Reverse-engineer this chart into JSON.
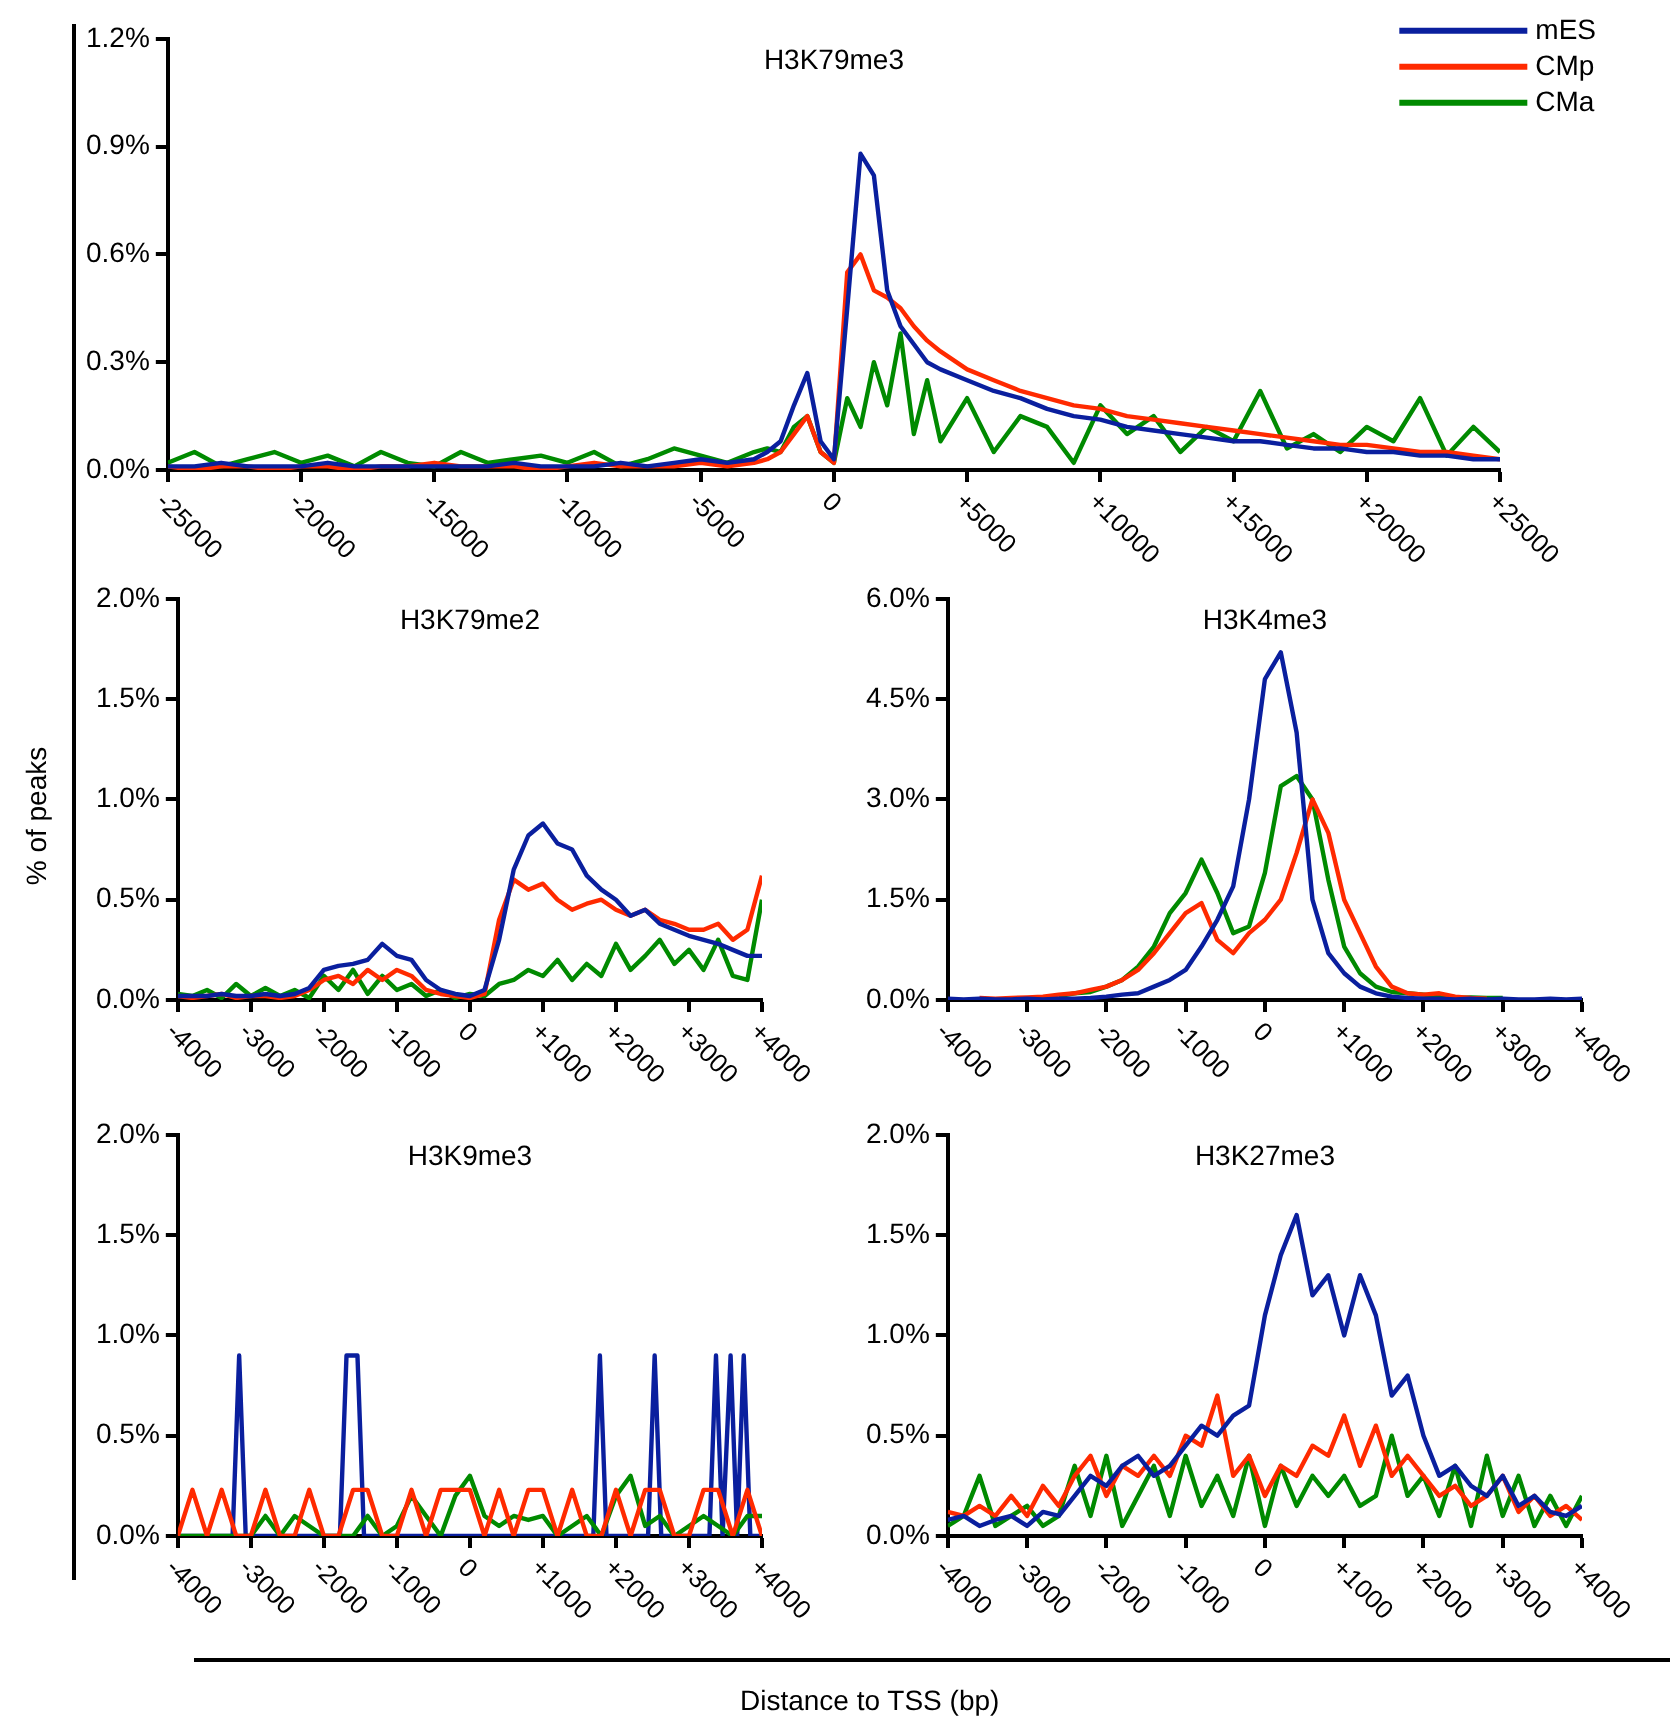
{
  "chart_data": [
    {
      "type": "line",
      "title": "H3K79me3",
      "legend": "top right",
      "x": [
        -25000,
        -24000,
        -23000,
        -22000,
        -21000,
        -20000,
        -19000,
        -18000,
        -17000,
        -16000,
        -15000,
        -14000,
        -13000,
        -12000,
        -11000,
        -10000,
        -9000,
        -8000,
        -7000,
        -6000,
        -5000,
        -4000,
        -3000,
        -2500,
        -2000,
        -1500,
        -1000,
        -500,
        0,
        500,
        1000,
        1500,
        2000,
        2500,
        3000,
        3500,
        4000,
        5000,
        6000,
        7000,
        8000,
        9000,
        10000,
        11000,
        12000,
        13000,
        14000,
        15000,
        16000,
        17000,
        18000,
        19000,
        20000,
        21000,
        22000,
        23000,
        24000,
        25000
      ],
      "xlim": [
        -25000,
        25000
      ],
      "xticks": [
        -25000,
        -20000,
        -15000,
        -10000,
        -5000,
        0,
        {
          "value": 5000,
          "label": "+5000"
        },
        {
          "value": 10000,
          "label": "+10000"
        },
        {
          "value": 15000,
          "label": "+15000"
        },
        {
          "value": 20000,
          "label": "+20000"
        },
        {
          "value": 25000,
          "label": "+25000"
        }
      ],
      "ylim": [
        0,
        1.2
      ],
      "yticks": [
        {
          "value": 0,
          "label": "0.0%"
        },
        {
          "value": 0.3,
          "label": "0.3%"
        },
        {
          "value": 0.6,
          "label": "0.6%"
        },
        {
          "value": 0.9,
          "label": "0.9%"
        },
        {
          "value": 1.2,
          "label": "1.2%"
        }
      ],
      "series": [
        {
          "name": "mES",
          "color": "#0a1f9e",
          "values": [
            0.01,
            0.01,
            0.02,
            0.01,
            0.01,
            0.01,
            0.02,
            0.01,
            0.01,
            0.01,
            0.01,
            0.01,
            0.01,
            0.02,
            0.01,
            0.01,
            0.01,
            0.02,
            0.01,
            0.02,
            0.03,
            0.02,
            0.03,
            0.05,
            0.08,
            0.18,
            0.27,
            0.08,
            0.03,
            0.45,
            0.88,
            0.82,
            0.5,
            0.4,
            0.35,
            0.3,
            0.28,
            0.25,
            0.22,
            0.2,
            0.17,
            0.15,
            0.14,
            0.12,
            0.11,
            0.1,
            0.09,
            0.08,
            0.08,
            0.07,
            0.06,
            0.06,
            0.05,
            0.05,
            0.04,
            0.04,
            0.03,
            0.03
          ]
        },
        {
          "name": "CMp",
          "color": "#ff2a00",
          "values": [
            0.01,
            0,
            0.01,
            0.01,
            0,
            0.01,
            0.01,
            0,
            0.01,
            0.01,
            0.02,
            0.01,
            0.01,
            0.01,
            0,
            0.01,
            0.02,
            0.01,
            0.01,
            0.01,
            0.02,
            0.01,
            0.02,
            0.03,
            0.05,
            0.1,
            0.15,
            0.05,
            0.02,
            0.55,
            0.6,
            0.5,
            0.48,
            0.45,
            0.4,
            0.36,
            0.33,
            0.28,
            0.25,
            0.22,
            0.2,
            0.18,
            0.17,
            0.15,
            0.14,
            0.13,
            0.12,
            0.11,
            0.1,
            0.09,
            0.08,
            0.07,
            0.07,
            0.06,
            0.05,
            0.05,
            0.04,
            0.03
          ]
        },
        {
          "name": "CMa",
          "color": "#008a00",
          "values": [
            0.02,
            0.05,
            0.01,
            0.03,
            0.05,
            0.02,
            0.04,
            0.01,
            0.05,
            0.02,
            0.01,
            0.05,
            0.02,
            0.03,
            0.04,
            0.02,
            0.05,
            0.01,
            0.03,
            0.06,
            0.04,
            0.02,
            0.05,
            0.06,
            0.05,
            0.12,
            0.15,
            0.05,
            0.02,
            0.2,
            0.12,
            0.3,
            0.18,
            0.38,
            0.1,
            0.25,
            0.08,
            0.2,
            0.05,
            0.15,
            0.12,
            0.02,
            0.18,
            0.1,
            0.15,
            0.05,
            0.12,
            0.08,
            0.22,
            0.06,
            0.1,
            0.05,
            0.12,
            0.08,
            0.2,
            0.04,
            0.12,
            0.05
          ]
        }
      ]
    },
    {
      "type": "line",
      "title": "H3K79me2",
      "ylabel": "% of peaks",
      "x": [
        -4000,
        -3800,
        -3600,
        -3400,
        -3200,
        -3000,
        -2800,
        -2600,
        -2400,
        -2200,
        -2000,
        -1800,
        -1600,
        -1400,
        -1200,
        -1000,
        -800,
        -600,
        -400,
        -200,
        0,
        200,
        400,
        600,
        800,
        1000,
        1200,
        1400,
        1600,
        1800,
        2000,
        2200,
        2400,
        2600,
        2800,
        3000,
        3200,
        3400,
        3600,
        3800,
        4000
      ],
      "xlim": [
        -4000,
        4000
      ],
      "xticks": [
        -4000,
        -3000,
        -2000,
        -1000,
        0,
        {
          "value": 1000,
          "label": "+1000"
        },
        {
          "value": 2000,
          "label": "+2000"
        },
        {
          "value": 3000,
          "label": "+3000"
        },
        {
          "value": 4000,
          "label": "+4000"
        }
      ],
      "ylim": [
        0,
        2
      ],
      "yticks": [
        {
          "value": 0,
          "label": "0.0%"
        },
        {
          "value": 0.5,
          "label": "0.5%"
        },
        {
          "value": 1,
          "label": "1.0%"
        },
        {
          "value": 1.5,
          "label": "1.5%"
        },
        {
          "value": 2,
          "label": "2.0%"
        }
      ],
      "series": [
        {
          "color": "#0a1f9e",
          "values": [
            0.02,
            0.02,
            0.02,
            0.03,
            0.02,
            0.02,
            0.03,
            0.02,
            0.03,
            0.06,
            0.15,
            0.17,
            0.18,
            0.2,
            0.28,
            0.22,
            0.2,
            0.1,
            0.05,
            0.03,
            0.02,
            0.05,
            0.3,
            0.65,
            0.82,
            0.88,
            0.78,
            0.75,
            0.62,
            0.55,
            0.5,
            0.42,
            0.45,
            0.38,
            0.35,
            0.32,
            0.3,
            0.28,
            0.25,
            0.22,
            0.22
          ]
        },
        {
          "color": "#ff2a00",
          "values": [
            0.02,
            0.01,
            0.02,
            0.03,
            0.01,
            0.02,
            0.02,
            0.01,
            0.02,
            0.05,
            0.1,
            0.12,
            0.08,
            0.15,
            0.1,
            0.15,
            0.12,
            0.05,
            0.03,
            0.02,
            0.01,
            0.03,
            0.4,
            0.6,
            0.55,
            0.58,
            0.5,
            0.45,
            0.48,
            0.5,
            0.45,
            0.42,
            0.45,
            0.4,
            0.38,
            0.35,
            0.35,
            0.38,
            0.3,
            0.35,
            0.62
          ]
        },
        {
          "color": "#008a00",
          "values": [
            0.03,
            0.02,
            0.05,
            0.01,
            0.08,
            0.02,
            0.06,
            0.02,
            0.05,
            0.01,
            0.12,
            0.05,
            0.15,
            0.03,
            0.12,
            0.05,
            0.08,
            0.02,
            0.05,
            0.01,
            0.03,
            0.02,
            0.08,
            0.1,
            0.15,
            0.12,
            0.2,
            0.1,
            0.18,
            0.12,
            0.28,
            0.15,
            0.22,
            0.3,
            0.18,
            0.25,
            0.15,
            0.3,
            0.12,
            0.1,
            0.5
          ]
        }
      ]
    },
    {
      "type": "line",
      "title": "H3K4me3",
      "x": [
        -4000,
        -3800,
        -3600,
        -3400,
        -3200,
        -3000,
        -2800,
        -2600,
        -2400,
        -2200,
        -2000,
        -1800,
        -1600,
        -1400,
        -1200,
        -1000,
        -800,
        -600,
        -400,
        -200,
        0,
        200,
        400,
        600,
        800,
        1000,
        1200,
        1400,
        1600,
        1800,
        2000,
        2200,
        2400,
        2600,
        2800,
        3000,
        3200,
        3400,
        3600,
        3800,
        4000
      ],
      "xlim": [
        -4000,
        4000
      ],
      "xticks": [
        -4000,
        -3000,
        -2000,
        -1000,
        0,
        {
          "value": 1000,
          "label": "+1000"
        },
        {
          "value": 2000,
          "label": "+2000"
        },
        {
          "value": 3000,
          "label": "+3000"
        },
        {
          "value": 4000,
          "label": "+4000"
        }
      ],
      "ylim": [
        0,
        6
      ],
      "yticks": [
        {
          "value": 0,
          "label": "0.0%"
        },
        {
          "value": 1.5,
          "label": "1.5%"
        },
        {
          "value": 3,
          "label": "3.0%"
        },
        {
          "value": 4.5,
          "label": "4.5%"
        },
        {
          "value": 6,
          "label": "6.0%"
        }
      ],
      "series": [
        {
          "color": "#0a1f9e",
          "values": [
            0.02,
            0.01,
            0.02,
            0.01,
            0.01,
            0.02,
            0.01,
            0.02,
            0.02,
            0.03,
            0.05,
            0.08,
            0.1,
            0.2,
            0.3,
            0.45,
            0.8,
            1.2,
            1.7,
            3.0,
            4.8,
            5.2,
            4.0,
            1.5,
            0.7,
            0.4,
            0.2,
            0.1,
            0.05,
            0.03,
            0.02,
            0.02,
            0.01,
            0.02,
            0.01,
            0.02,
            0.01,
            0.01,
            0.02,
            0.01,
            0.02
          ]
        },
        {
          "color": "#ff2a00",
          "values": [
            null,
            null,
            0.03,
            0.02,
            0.03,
            0.04,
            0.05,
            0.08,
            0.1,
            0.15,
            0.2,
            0.3,
            0.45,
            0.7,
            1.0,
            1.3,
            1.45,
            0.9,
            0.7,
            1.0,
            1.2,
            1.5,
            2.2,
            3.0,
            2.5,
            1.5,
            1.0,
            0.5,
            0.2,
            0.1,
            0.08,
            0.1,
            0.05,
            0.03,
            0.02,
            null,
            null,
            null,
            null,
            null,
            null
          ]
        },
        {
          "color": "#008a00",
          "values": [
            null,
            null,
            null,
            null,
            null,
            null,
            null,
            0.06,
            0.1,
            0.12,
            0.2,
            0.3,
            0.5,
            0.8,
            1.3,
            1.6,
            2.1,
            1.6,
            1.0,
            1.1,
            1.9,
            3.2,
            3.35,
            3.0,
            1.8,
            0.8,
            0.4,
            0.2,
            0.12,
            0.1,
            0.08,
            0.05,
            0.03,
            0.04,
            0.03,
            0.03,
            null,
            null,
            null,
            null,
            null
          ]
        }
      ]
    },
    {
      "type": "line",
      "title": "H3K9me3",
      "x": [
        -4000,
        -3800,
        -3600,
        -3400,
        -3200,
        -3000,
        -2800,
        -2600,
        -2400,
        -2200,
        -2000,
        -1800,
        -1600,
        -1400,
        -1200,
        -1000,
        -800,
        -600,
        -400,
        -200,
        0,
        200,
        400,
        600,
        800,
        1000,
        1200,
        1400,
        1600,
        1800,
        2000,
        2200,
        2400,
        2600,
        2800,
        3000,
        3200,
        3400,
        3600,
        3800,
        4000
      ],
      "xlim": [
        -4000,
        4000
      ],
      "xticks": [
        -4000,
        -3000,
        -2000,
        -1000,
        0,
        {
          "value": 1000,
          "label": "+1000"
        },
        {
          "value": 2000,
          "label": "+2000"
        },
        {
          "value": 3000,
          "label": "+3000"
        },
        {
          "value": 4000,
          "label": "+4000"
        }
      ],
      "ylim": [
        0,
        2
      ],
      "yticks": [
        {
          "value": 0,
          "label": "0.0%"
        },
        {
          "value": 0.5,
          "label": "0.5%"
        },
        {
          "value": 1,
          "label": "1.0%"
        },
        {
          "value": 1.5,
          "label": "1.5%"
        },
        {
          "value": 2,
          "label": "2.0%"
        }
      ],
      "series": [
        {
          "color": "#ff2a00",
          "values": [
            0,
            0.23,
            0,
            0.23,
            0,
            0,
            0.23,
            0,
            0,
            0.23,
            0,
            0,
            0.23,
            0.23,
            0,
            0,
            0.23,
            0,
            0.23,
            0.23,
            0.23,
            0,
            0.23,
            0,
            0.23,
            0.23,
            0,
            0.23,
            0,
            0,
            0.23,
            0,
            0.23,
            0.23,
            0,
            0,
            0.23,
            0.23,
            0,
            0.23,
            0
          ]
        },
        {
          "color": "#008a00",
          "values": [
            0,
            0,
            0,
            0,
            0,
            0,
            0.1,
            0,
            0.1,
            0.05,
            0,
            0,
            0,
            0.1,
            0,
            0.05,
            0.2,
            0.1,
            0,
            0.2,
            0.3,
            0.1,
            0.05,
            0.1,
            0.08,
            0.1,
            0,
            0.05,
            0.1,
            0,
            0.2,
            0.3,
            0.05,
            0.1,
            0,
            0.05,
            0.1,
            0.05,
            0,
            0.1,
            0.1
          ]
        },
        {
          "color": "#0a1f9e",
          "x": [
            -4000,
            -3250,
            -3160,
            -3070,
            -1780,
            -1690,
            -1540,
            -1450,
            1690,
            1780,
            1870,
            2440,
            2530,
            2620,
            3280,
            3370,
            3460,
            3570,
            3660,
            3750,
            3840,
            4000
          ],
          "values": [
            0,
            0,
            0.9,
            0,
            0,
            0.9,
            0.9,
            0,
            0,
            0.9,
            0,
            0,
            0.9,
            0,
            0,
            0.9,
            0,
            0.9,
            0,
            0.9,
            0,
            0
          ]
        }
      ]
    },
    {
      "type": "line",
      "title": "H3K27me3",
      "xlabel": "Distance to TSS (bp)",
      "x": [
        -4000,
        -3800,
        -3600,
        -3400,
        -3200,
        -3000,
        -2800,
        -2600,
        -2400,
        -2200,
        -2000,
        -1800,
        -1600,
        -1400,
        -1200,
        -1000,
        -800,
        -600,
        -400,
        -200,
        0,
        200,
        400,
        600,
        800,
        1000,
        1200,
        1400,
        1600,
        1800,
        2000,
        2200,
        2400,
        2600,
        2800,
        3000,
        3200,
        3400,
        3600,
        3800,
        4000
      ],
      "xlim": [
        -4000,
        4000
      ],
      "xticks": [
        -4000,
        -3000,
        -2000,
        -1000,
        0,
        {
          "value": 1000,
          "label": "+1000"
        },
        {
          "value": 2000,
          "label": "+2000"
        },
        {
          "value": 3000,
          "label": "+3000"
        },
        {
          "value": 4000,
          "label": "+4000"
        }
      ],
      "ylim": [
        0,
        2
      ],
      "yticks": [
        {
          "value": 0,
          "label": "0.0%"
        },
        {
          "value": 0.5,
          "label": "0.5%"
        },
        {
          "value": 1,
          "label": "1.0%"
        },
        {
          "value": 1.5,
          "label": "1.5%"
        },
        {
          "value": 2,
          "label": "2.0%"
        }
      ],
      "series": [
        {
          "color": "#0a1f9e",
          "values": [
            0.08,
            0.1,
            0.05,
            0.08,
            0.1,
            0.05,
            0.12,
            0.1,
            0.2,
            0.3,
            0.25,
            0.35,
            0.4,
            0.3,
            0.35,
            0.45,
            0.55,
            0.5,
            0.6,
            0.65,
            1.1,
            1.4,
            1.6,
            1.2,
            1.3,
            1.0,
            1.3,
            1.1,
            0.7,
            0.8,
            0.5,
            0.3,
            0.35,
            0.25,
            0.2,
            0.3,
            0.15,
            0.2,
            0.12,
            0.1,
            0.15
          ]
        },
        {
          "color": "#ff2a00",
          "values": [
            0.12,
            0.1,
            0.15,
            0.1,
            0.2,
            0.1,
            0.25,
            0.15,
            0.3,
            0.4,
            0.2,
            0.35,
            0.3,
            0.4,
            0.3,
            0.5,
            0.45,
            0.7,
            0.3,
            0.4,
            0.2,
            0.35,
            0.3,
            0.45,
            0.4,
            0.6,
            0.35,
            0.55,
            0.3,
            0.4,
            0.3,
            0.2,
            0.25,
            0.15,
            0.2,
            0.3,
            0.12,
            0.2,
            0.1,
            0.15,
            0.08
          ]
        },
        {
          "color": "#008a00",
          "values": [
            0.05,
            0.1,
            0.3,
            0.05,
            0.1,
            0.15,
            0.05,
            0.1,
            0.35,
            0.1,
            0.4,
            0.05,
            0.2,
            0.35,
            0.1,
            0.4,
            0.15,
            0.3,
            0.1,
            0.4,
            0.05,
            0.35,
            0.15,
            0.3,
            0.2,
            0.3,
            0.15,
            0.2,
            0.5,
            0.2,
            0.3,
            0.1,
            0.35,
            0.05,
            0.4,
            0.1,
            0.3,
            0.05,
            0.2,
            0.05,
            0.2
          ]
        }
      ]
    }
  ]
}
